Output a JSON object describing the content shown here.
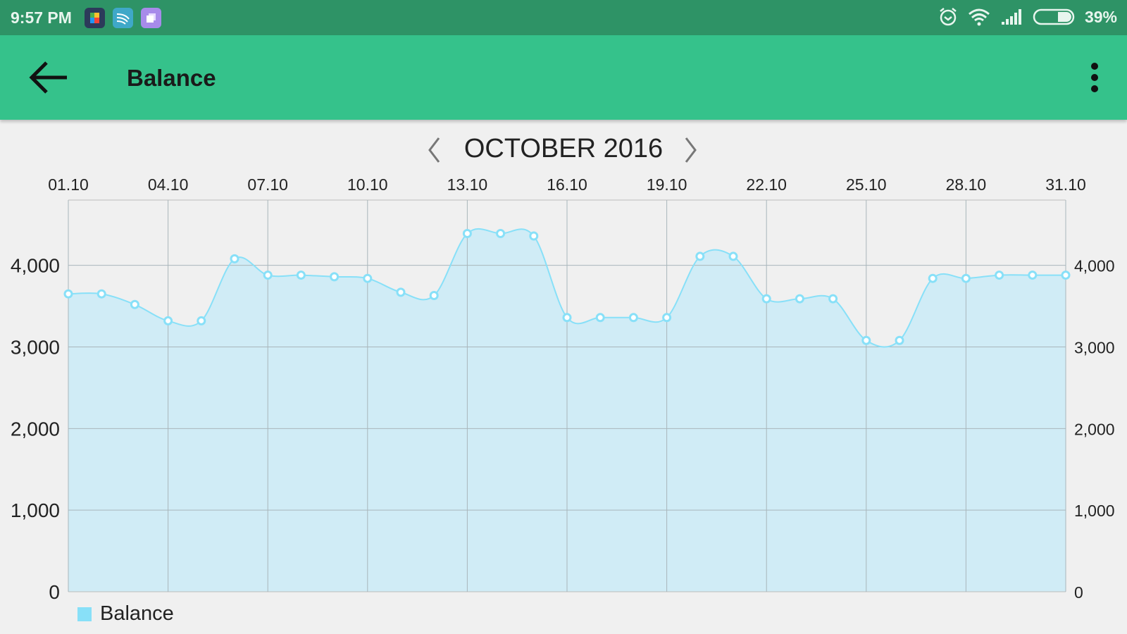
{
  "status_bar": {
    "time": "9:57 PM",
    "battery": "39%",
    "battery_level": 0.39,
    "notification_icons": [
      "google-play-services-icon",
      "swiftkey-icon",
      "purple-app-icon"
    ],
    "system_icons": [
      "alarm-icon",
      "wifi-icon",
      "signal-icon",
      "battery-icon"
    ]
  },
  "app_bar": {
    "title": "Balance",
    "color": "#35c28b",
    "back_icon": "arrow-left-icon",
    "menu_icon": "more-vert-icon"
  },
  "period": {
    "label": "OCTOBER 2016"
  },
  "chart_data": {
    "type": "area",
    "x_tick_labels": [
      "01.10",
      "04.10",
      "07.10",
      "10.10",
      "13.10",
      "16.10",
      "19.10",
      "22.10",
      "25.10",
      "28.10",
      "31.10"
    ],
    "x": [
      "01.10",
      "02.10",
      "03.10",
      "04.10",
      "05.10",
      "06.10",
      "07.10",
      "08.10",
      "09.10",
      "10.10",
      "11.10",
      "12.10",
      "13.10",
      "14.10",
      "15.10",
      "16.10",
      "17.10",
      "18.10",
      "19.10",
      "20.10",
      "21.10",
      "22.10",
      "23.10",
      "24.10",
      "25.10",
      "26.10",
      "27.10",
      "28.10",
      "29.10",
      "30.10",
      "31.10"
    ],
    "series": [
      {
        "name": "Balance",
        "color": "#88e0f8",
        "values": [
          3650,
          3650,
          3520,
          3320,
          3320,
          4080,
          3880,
          3880,
          3860,
          3840,
          3670,
          3630,
          4390,
          4390,
          4360,
          3360,
          3360,
          3360,
          3360,
          4110,
          4110,
          3590,
          3590,
          3590,
          3080,
          3080,
          3840,
          3840,
          3880,
          3880,
          3880
        ]
      }
    ],
    "y_tick_labels": [
      "0",
      "1,000",
      "2,000",
      "3,000",
      "4,000"
    ],
    "y_ticks": [
      0,
      1000,
      2000,
      3000,
      4000
    ],
    "ylim": [
      0,
      4800
    ],
    "grid": true,
    "legend": "bottom-left",
    "x_axis_position": "top",
    "y_axis": "both-sides"
  }
}
